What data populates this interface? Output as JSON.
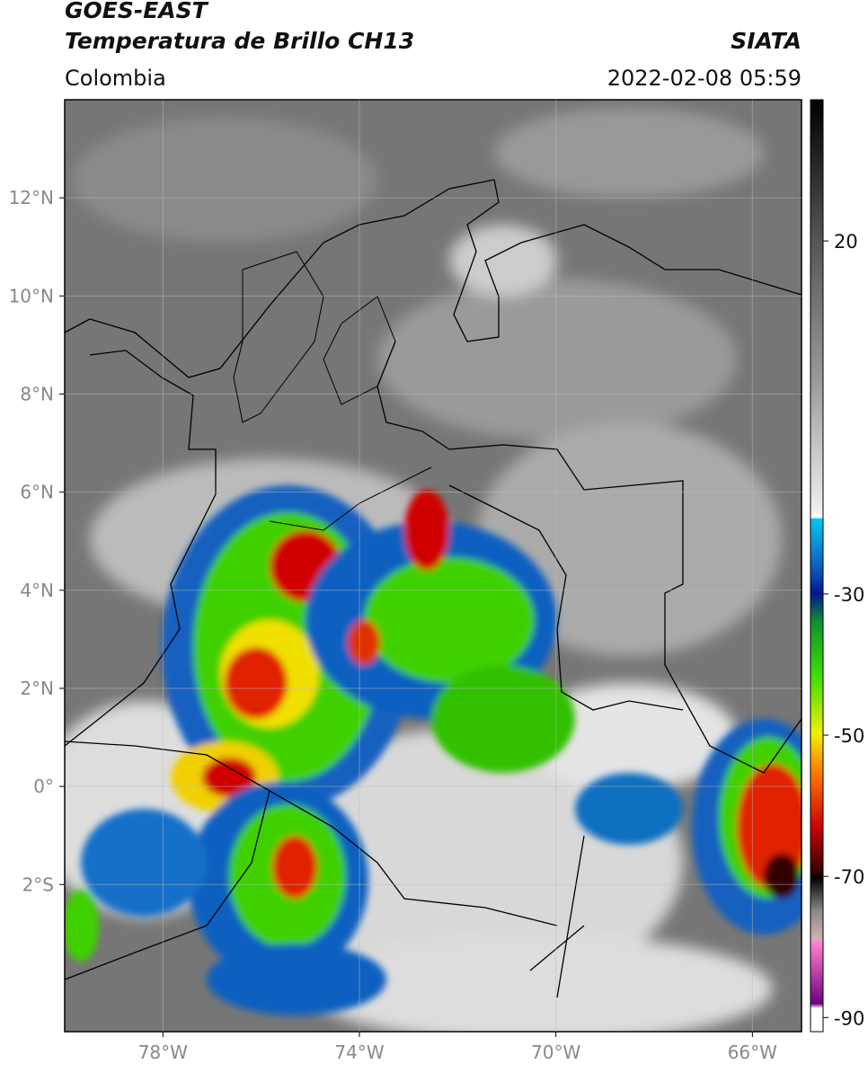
{
  "header": {
    "title": "GOES-EAST",
    "subtitle": "Temperatura de Brillo CH13",
    "source": "SIATA",
    "region": "Colombia",
    "timestamp": "2022-02-08 05:59"
  },
  "map": {
    "xlim": [
      -80,
      -65
    ],
    "ylim": [
      -5,
      14
    ],
    "grid": true,
    "xticks": [
      {
        "value": -78,
        "label": "78°W"
      },
      {
        "value": -74,
        "label": "74°W"
      },
      {
        "value": -70,
        "label": "70°W"
      },
      {
        "value": -66,
        "label": "66°W"
      }
    ],
    "yticks": [
      {
        "value": 12,
        "label": "12°N"
      },
      {
        "value": 10,
        "label": "10°N"
      },
      {
        "value": 8,
        "label": "8°N"
      },
      {
        "value": 6,
        "label": "6°N"
      },
      {
        "value": 4,
        "label": "4°N"
      },
      {
        "value": 2,
        "label": "2°N"
      },
      {
        "value": 0,
        "label": "0°"
      },
      {
        "value": -2,
        "label": "2°S"
      }
    ]
  },
  "colorbar": {
    "clim": [
      -92,
      40
    ],
    "ticks": [
      20,
      -30,
      -50,
      -70,
      -90
    ]
  }
}
